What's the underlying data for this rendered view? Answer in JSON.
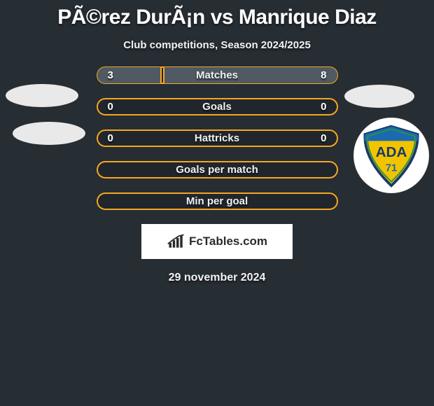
{
  "title": "PÃ©rez DurÃ¡n vs Manrique Diaz",
  "subtitle": "Club competitions, Season 2024/2025",
  "date": "29 november 2024",
  "brand": "FcTables.com",
  "colors": {
    "background": "#262d33",
    "accent": "#f5a623",
    "bar_fill": "#4f5a63",
    "text": "#ffffff"
  },
  "badge": {
    "name": "ADA-71-club-crest",
    "shield_fill": "#f2c400",
    "top_stripe": "#1b6ab0",
    "outline": "#193a6a",
    "letters": "ADA",
    "number": "71"
  },
  "rows": [
    {
      "label": "Matches",
      "left": "3",
      "right": "8",
      "left_pct": 27,
      "right_pct": 73,
      "show_values": true
    },
    {
      "label": "Goals",
      "left": "0",
      "right": "0",
      "left_pct": 0,
      "right_pct": 0,
      "show_values": true
    },
    {
      "label": "Hattricks",
      "left": "0",
      "right": "0",
      "left_pct": 0,
      "right_pct": 0,
      "show_values": true
    },
    {
      "label": "Goals per match",
      "left": "",
      "right": "",
      "left_pct": 0,
      "right_pct": 0,
      "show_values": false
    },
    {
      "label": "Min per goal",
      "left": "",
      "right": "",
      "left_pct": 0,
      "right_pct": 0,
      "show_values": false
    }
  ]
}
